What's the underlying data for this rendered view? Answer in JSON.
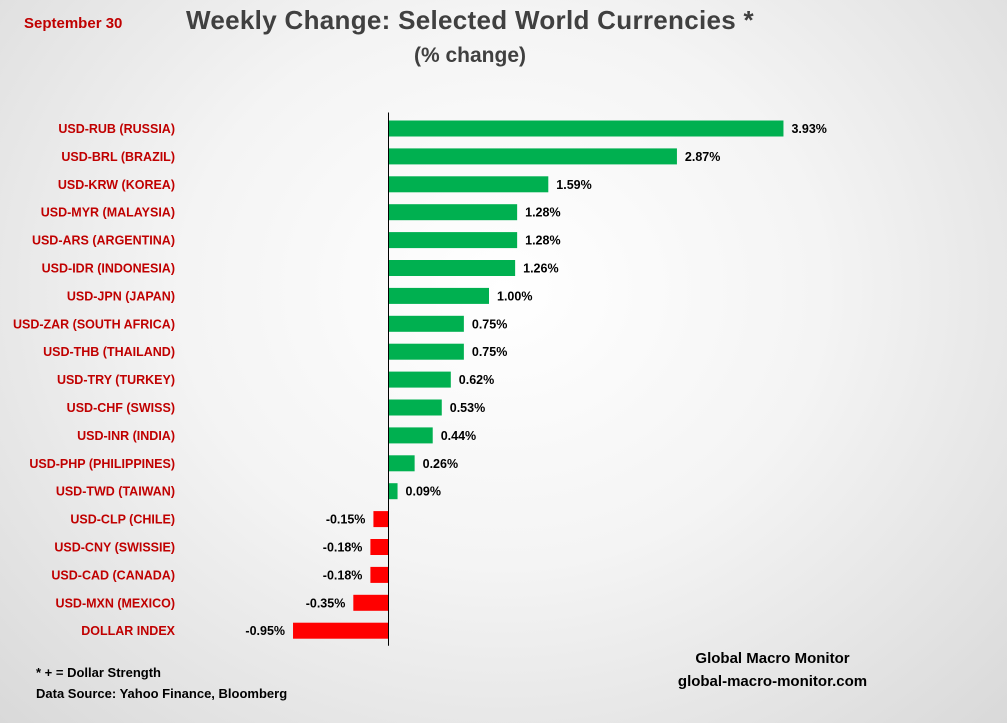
{
  "header": {
    "date": "September 30",
    "title": "Weekly Change: Selected World Currencies *",
    "subtitle": "(% change)"
  },
  "footer": {
    "note": "* + = Dollar Strength",
    "source": "Data Source:  Yahoo Finance, Bloomberg",
    "brand_name": "Global Macro Monitor",
    "brand_url": "global-macro-monitor.com"
  },
  "colors": {
    "positive": "#00b050",
    "negative": "#ff0000",
    "category_label": "#c00000",
    "value_label": "#000000",
    "axis": "#000000"
  },
  "chart_data": {
    "type": "bar",
    "orientation": "horizontal",
    "title": "Weekly Change: Selected World Currencies *",
    "subtitle": "(% change)",
    "categories": [
      "USD-RUB (RUSSIA)",
      "USD-BRL (BRAZIL)",
      "USD-KRW (KOREA)",
      "USD-MYR (MALAYSIA)",
      "USD-ARS (ARGENTINA)",
      "USD-IDR (INDONESIA)",
      "USD-JPN (JAPAN)",
      "USD-ZAR (SOUTH AFRICA)",
      "USD-THB  (THAILAND)",
      "USD-TRY (TURKEY)",
      "USD-CHF (SWISS)",
      "USD-INR (INDIA)",
      "USD-PHP (PHILIPPINES)",
      "USD-TWD (TAIWAN)",
      "USD-CLP (CHILE)",
      "USD-CNY (SWISSIE)",
      "USD-CAD (CANADA)",
      "USD-MXN  (MEXICO)",
      "DOLLAR INDEX"
    ],
    "values": [
      3.93,
      2.87,
      1.59,
      1.28,
      1.28,
      1.26,
      1.0,
      0.75,
      0.75,
      0.62,
      0.53,
      0.44,
      0.26,
      0.09,
      -0.15,
      -0.18,
      -0.18,
      -0.35,
      -0.95
    ],
    "value_labels": [
      "3.93%",
      "2.87%",
      "1.59%",
      "1.28%",
      "1.28%",
      "1.26%",
      "1.00%",
      "0.75%",
      "0.75%",
      "0.62%",
      "0.53%",
      "0.44%",
      "0.26%",
      "0.09%",
      "-0.15%",
      "-0.18%",
      "-0.18%",
      "-0.35%",
      "-0.95%"
    ],
    "xlim": [
      -0.95,
      3.93
    ],
    "grid": false,
    "legend": "none"
  }
}
